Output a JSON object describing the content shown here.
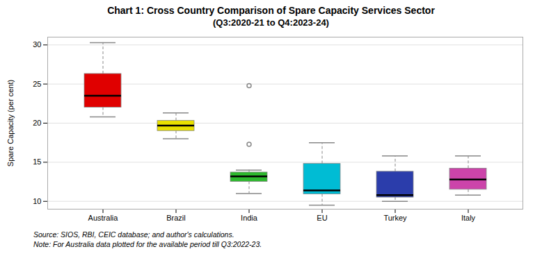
{
  "chart_data": {
    "type": "box",
    "title": "Chart 1: Cross Country Comparison of Spare Capacity Services Sector",
    "subtitle": "(Q3:2020-21 to Q4:2023-24)",
    "ylabel": "Spare Capacity (per cent)",
    "source": "Source: SIOS, RBI, CEIC database; and author's calculations.",
    "note": "Note: For Australia data plotted for the available period till Q3:2022-23.",
    "categories": [
      "Australia",
      "Brazil",
      "India",
      "EU",
      "Turkey",
      "Italy"
    ],
    "colors": [
      "#e00000",
      "#e8e000",
      "#2db82d",
      "#00bcd4",
      "#2b3dab",
      "#cc44aa"
    ],
    "boxes": [
      {
        "whislo": 20.8,
        "q1": 22.0,
        "med": 23.5,
        "q3": 26.3,
        "whishi": 30.3,
        "fliers": []
      },
      {
        "whislo": 18.0,
        "q1": 19.0,
        "med": 19.7,
        "q3": 20.3,
        "whishi": 21.3,
        "fliers": []
      },
      {
        "whislo": 11.0,
        "q1": 12.5,
        "med": 13.2,
        "q3": 13.7,
        "whishi": 14.0,
        "fliers": [
          24.8,
          17.3
        ]
      },
      {
        "whislo": 9.5,
        "q1": 10.9,
        "med": 11.4,
        "q3": 14.8,
        "whishi": 17.5,
        "fliers": []
      },
      {
        "whislo": 10.0,
        "q1": 10.5,
        "med": 10.8,
        "q3": 13.8,
        "whishi": 15.8,
        "fliers": []
      },
      {
        "whislo": 10.8,
        "q1": 11.5,
        "med": 12.8,
        "q3": 14.2,
        "whishi": 15.8,
        "fliers": []
      }
    ],
    "ylim": [
      9,
      31
    ],
    "yticks": [
      10,
      15,
      20,
      25,
      30
    ],
    "grid": true
  }
}
